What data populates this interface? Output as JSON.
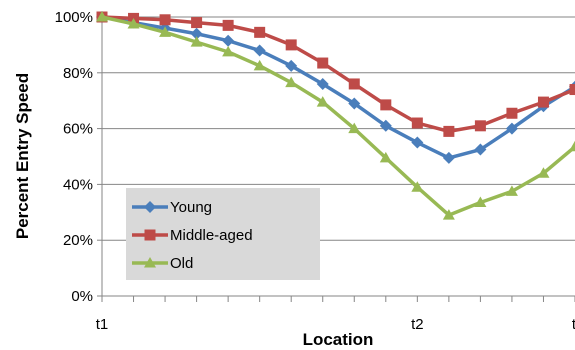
{
  "chart_data": {
    "type": "line",
    "title": "",
    "xlabel": "Location",
    "ylabel": "Percent Entry Speed",
    "ylim": [
      0,
      100
    ],
    "yticks": [
      "0%",
      "20%",
      "40%",
      "60%",
      "80%",
      "100%"
    ],
    "ytick_values": [
      0,
      20,
      40,
      60,
      80,
      100
    ],
    "x": [
      0,
      1,
      2,
      3,
      4,
      5,
      6,
      7,
      8,
      9,
      10,
      11,
      12,
      13,
      14,
      15
    ],
    "xlim": [
      0,
      15
    ],
    "xtick_labels": [
      {
        "x": 0,
        "label": "t1"
      },
      {
        "x": 10,
        "label": "t2"
      },
      {
        "x": 15,
        "label": "t"
      }
    ],
    "grid": "horizontal",
    "legend_position": "bottom-left",
    "series": [
      {
        "name": "Young",
        "color": "#4a7ebb",
        "marker": "diamond",
        "values": [
          100,
          98,
          96,
          94,
          91.5,
          88,
          82.5,
          76,
          69,
          61,
          55,
          49.5,
          52.5,
          60,
          68,
          75
        ]
      },
      {
        "name": "Middle-aged",
        "color": "#be4b48",
        "marker": "square",
        "values": [
          100,
          99.5,
          99,
          98,
          97,
          94.5,
          90,
          83.5,
          76,
          68.5,
          62,
          59,
          61,
          65.5,
          69.5,
          74
        ]
      },
      {
        "name": "Old",
        "color": "#98b954",
        "marker": "triangle",
        "values": [
          100,
          97.5,
          94.5,
          91,
          87.5,
          82.5,
          76.5,
          69.5,
          60,
          49.5,
          39,
          29,
          33.5,
          37.5,
          44,
          53.5
        ]
      }
    ]
  }
}
